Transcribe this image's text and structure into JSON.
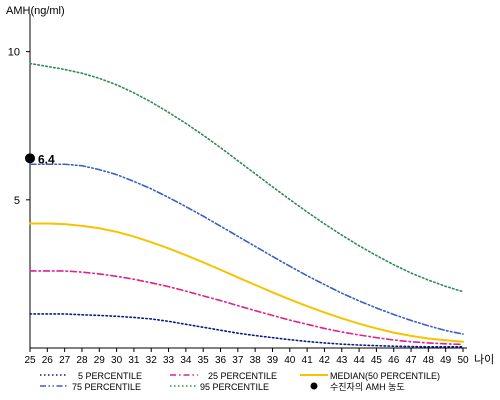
{
  "chart_data": {
    "type": "line",
    "title": "",
    "ylabel": "AMH(ng/ml)",
    "xlabel": "나이",
    "x": [
      25,
      26,
      27,
      28,
      29,
      30,
      31,
      32,
      33,
      34,
      35,
      36,
      37,
      38,
      39,
      40,
      41,
      42,
      43,
      44,
      45,
      46,
      47,
      48,
      49,
      50
    ],
    "x_tick_labels": [
      "25",
      "26",
      "27",
      "28",
      "29",
      "30",
      "31",
      "32",
      "33",
      "34",
      "35",
      "36",
      "37",
      "38",
      "39",
      "40",
      "41",
      "42",
      "43",
      "44",
      "45",
      "46",
      "47",
      "48",
      "49",
      "50"
    ],
    "y_ticks": [
      5,
      10
    ],
    "y_tick_labels": [
      "5",
      "10"
    ],
    "ylim": [
      0,
      11
    ],
    "grid": false,
    "legend_position": "bottom",
    "series": [
      {
        "name": "5 PERCENTILE",
        "color": "#0a1a8c",
        "dash": "dotted",
        "values": [
          1.15,
          1.15,
          1.15,
          1.12,
          1.1,
          1.07,
          1.03,
          0.98,
          0.9,
          0.8,
          0.7,
          0.6,
          0.5,
          0.42,
          0.35,
          0.28,
          0.22,
          0.17,
          0.13,
          0.1,
          0.08,
          0.06,
          0.05,
          0.04,
          0.04,
          0.04
        ]
      },
      {
        "name": "25 PERCENTILE",
        "color": "#e0208c",
        "dash": "dashdot",
        "values": [
          2.6,
          2.6,
          2.6,
          2.56,
          2.5,
          2.42,
          2.32,
          2.2,
          2.07,
          1.92,
          1.76,
          1.6,
          1.43,
          1.26,
          1.1,
          0.94,
          0.8,
          0.66,
          0.54,
          0.44,
          0.35,
          0.27,
          0.21,
          0.17,
          0.14,
          0.12
        ]
      },
      {
        "name": "MEDIAN(50 PERCENTILE)",
        "color": "#f5c400",
        "dash": "solid",
        "values": [
          4.2,
          4.2,
          4.18,
          4.12,
          4.04,
          3.92,
          3.76,
          3.57,
          3.36,
          3.13,
          2.89,
          2.64,
          2.38,
          2.13,
          1.88,
          1.64,
          1.41,
          1.2,
          1.0,
          0.82,
          0.66,
          0.52,
          0.41,
          0.32,
          0.26,
          0.21
        ]
      },
      {
        "name": "75 PERCENTILE",
        "color": "#3a5fc4",
        "dash": "dashdotdot",
        "values": [
          6.2,
          6.2,
          6.2,
          6.15,
          6.02,
          5.85,
          5.62,
          5.37,
          5.08,
          4.77,
          4.45,
          4.11,
          3.77,
          3.43,
          3.09,
          2.76,
          2.44,
          2.14,
          1.85,
          1.59,
          1.35,
          1.13,
          0.93,
          0.75,
          0.59,
          0.47
        ]
      },
      {
        "name": "95 PERCENTILE",
        "color": "#2e8b57",
        "dash": "dotted",
        "values": [
          9.6,
          9.5,
          9.4,
          9.27,
          9.1,
          8.88,
          8.61,
          8.3,
          7.95,
          7.58,
          7.18,
          6.76,
          6.32,
          5.88,
          5.44,
          5.01,
          4.59,
          4.19,
          3.81,
          3.45,
          3.12,
          2.81,
          2.53,
          2.29,
          2.08,
          1.9
        ]
      }
    ],
    "marker": {
      "name": "수진자의 AMH 농도",
      "x": 25,
      "y": 6.4,
      "label": "6.4",
      "color": "#000000"
    }
  }
}
